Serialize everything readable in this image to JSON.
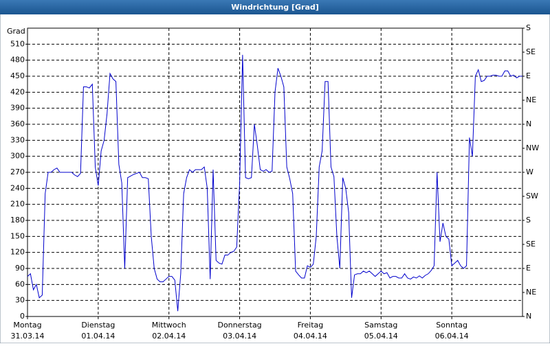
{
  "chart_data": {
    "type": "line",
    "title": "Windrichtung [Grad]",
    "ylabel": "Grad",
    "x": [
      0,
      1,
      2,
      3,
      4,
      5,
      6,
      7,
      8,
      9,
      10,
      11,
      12,
      13,
      14,
      15,
      16,
      17,
      18,
      19,
      20,
      21,
      22,
      23,
      24,
      25,
      26,
      27,
      28,
      29,
      30,
      31,
      32,
      33,
      34,
      35,
      36,
      37,
      38,
      39,
      40,
      41,
      42,
      43,
      44,
      45,
      46,
      47,
      48,
      49,
      50,
      51,
      52,
      53,
      54,
      55,
      56,
      57,
      58,
      59,
      60,
      61,
      62,
      63,
      64,
      65,
      66,
      67,
      68,
      69,
      70,
      71,
      72,
      73,
      74,
      75,
      76,
      77,
      78,
      79,
      80,
      81,
      82,
      83,
      84,
      85,
      86,
      87,
      88,
      89,
      90,
      91,
      92,
      93,
      94,
      95,
      96,
      97,
      98,
      99,
      100,
      101,
      102,
      103,
      104,
      105,
      106,
      107,
      108,
      109,
      110,
      111,
      112,
      113,
      114,
      115,
      116,
      117,
      118,
      119,
      120,
      121,
      122,
      123,
      124,
      125,
      126,
      127,
      128,
      129,
      130,
      131,
      132,
      133,
      134,
      135,
      136,
      137,
      138,
      139,
      140,
      141,
      142,
      143,
      144,
      145,
      146,
      147,
      148,
      149,
      150,
      151,
      152,
      153,
      154,
      155,
      156,
      157,
      158,
      159,
      160,
      161,
      162,
      163,
      164,
      165,
      166,
      167,
      168
    ],
    "values": [
      75,
      80,
      50,
      60,
      35,
      40,
      230,
      270,
      270,
      275,
      278,
      270,
      270,
      270,
      270,
      270,
      265,
      262,
      268,
      430,
      430,
      428,
      435,
      280,
      245,
      310,
      330,
      380,
      455,
      445,
      440,
      285,
      250,
      90,
      260,
      263,
      266,
      268,
      270,
      260,
      260,
      258,
      150,
      90,
      70,
      65,
      65,
      70,
      75,
      75,
      68,
      10,
      80,
      230,
      260,
      275,
      270,
      275,
      275,
      275,
      280,
      240,
      70,
      275,
      105,
      100,
      98,
      115,
      115,
      120,
      122,
      130,
      250,
      490,
      260,
      258,
      260,
      360,
      320,
      275,
      272,
      275,
      270,
      272,
      420,
      465,
      450,
      430,
      280,
      258,
      230,
      85,
      78,
      72,
      72,
      95,
      92,
      98,
      150,
      280,
      310,
      440,
      440,
      280,
      262,
      150,
      90,
      260,
      240,
      195,
      35,
      78,
      80,
      80,
      85,
      82,
      85,
      80,
      75,
      80,
      85,
      80,
      82,
      72,
      75,
      75,
      72,
      72,
      80,
      72,
      70,
      74,
      72,
      76,
      72,
      77,
      80,
      86,
      95,
      270,
      140,
      175,
      150,
      145,
      95,
      100,
      105,
      95,
      90,
      95,
      335,
      300,
      450,
      462,
      440,
      442,
      450,
      450,
      452,
      452,
      450,
      450,
      460,
      460,
      450,
      452,
      447,
      450,
      450
    ],
    "color": "#0000cc",
    "xlim": [
      0,
      168
    ],
    "xticks": [
      {
        "value": 0,
        "label": "Montag"
      },
      {
        "value": 24,
        "label": "Dienstag"
      },
      {
        "value": 48,
        "label": "Mittwoch"
      },
      {
        "value": 72,
        "label": "Donnerstag"
      },
      {
        "value": 96,
        "label": "Freitag"
      },
      {
        "value": 120,
        "label": "Samstag"
      },
      {
        "value": 144,
        "label": "Sonntag"
      }
    ],
    "xtick_dates": [
      "31.03.14",
      "01.04.14",
      "02.04.14",
      "03.04.14",
      "04.04.14",
      "05.04.14",
      "06.04.14"
    ],
    "ylim": [
      0,
      540
    ],
    "yticks": [
      0,
      30,
      60,
      90,
      120,
      150,
      180,
      210,
      240,
      270,
      300,
      330,
      360,
      390,
      420,
      450,
      480,
      510
    ],
    "y2lim": [
      0,
      540
    ],
    "y2ticks": [
      {
        "value": 0,
        "label": "N"
      },
      {
        "value": 45,
        "label": "NE"
      },
      {
        "value": 90,
        "label": "E"
      },
      {
        "value": 135,
        "label": "SE"
      },
      {
        "value": 180,
        "label": "S"
      },
      {
        "value": 225,
        "label": "SW"
      },
      {
        "value": 270,
        "label": "W"
      },
      {
        "value": 315,
        "label": "NW"
      },
      {
        "value": 360,
        "label": "N"
      },
      {
        "value": 405,
        "label": "NE"
      },
      {
        "value": 450,
        "label": "E"
      },
      {
        "value": 495,
        "label": "SE"
      },
      {
        "value": 540,
        "label": "S"
      }
    ],
    "grid": true
  }
}
